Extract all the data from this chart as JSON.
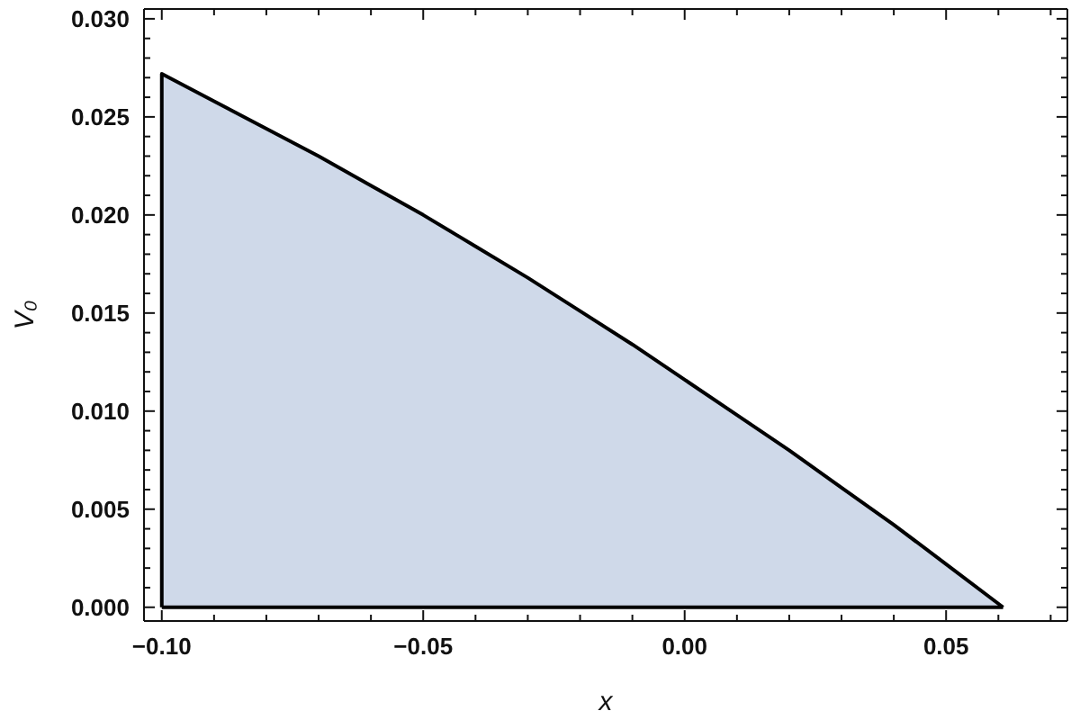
{
  "chart_data": {
    "type": "area",
    "xlabel": "x",
    "ylabel": "V₀",
    "x": [
      -0.1,
      -0.09,
      -0.08,
      -0.07,
      -0.06,
      -0.05,
      -0.04,
      -0.03,
      -0.02,
      -0.01,
      0,
      0.01,
      0.02,
      0.03,
      0.04,
      0.05,
      0.0609
    ],
    "values": [
      0.0272,
      0.0258,
      0.0244,
      0.023,
      0.0215,
      0.02,
      0.0184,
      0.0168,
      0.0151,
      0.0134,
      0.0116,
      0.0098,
      0.008,
      0.0061,
      0.0042,
      0.0022,
      0
    ],
    "color": "#cfd9e9",
    "xlim": [
      -0.1034,
      0.0732
    ],
    "ylim": [
      -0.0007,
      0.0305
    ],
    "xticks": [
      {
        "value": -0.1,
        "label": "−0.10"
      },
      {
        "value": -0.09,
        "label": null
      },
      {
        "value": -0.08,
        "label": null
      },
      {
        "value": -0.07,
        "label": null
      },
      {
        "value": -0.06,
        "label": null
      },
      {
        "value": -0.05,
        "label": "−0.05"
      },
      {
        "value": -0.04,
        "label": null
      },
      {
        "value": -0.03,
        "label": null
      },
      {
        "value": -0.02,
        "label": null
      },
      {
        "value": -0.01,
        "label": null
      },
      {
        "value": 0,
        "label": "0.00"
      },
      {
        "value": 0.01,
        "label": null
      },
      {
        "value": 0.02,
        "label": null
      },
      {
        "value": 0.03,
        "label": null
      },
      {
        "value": 0.04,
        "label": null
      },
      {
        "value": 0.05,
        "label": "0.05"
      },
      {
        "value": 0.06,
        "label": null
      },
      {
        "value": 0.07,
        "label": null
      }
    ],
    "yticks": [
      {
        "value": 0,
        "label": "0.000"
      },
      {
        "value": 0.001,
        "label": null
      },
      {
        "value": 0.002,
        "label": null
      },
      {
        "value": 0.003,
        "label": null
      },
      {
        "value": 0.004,
        "label": null
      },
      {
        "value": 0.005,
        "label": "0.005"
      },
      {
        "value": 0.006,
        "label": null
      },
      {
        "value": 0.007,
        "label": null
      },
      {
        "value": 0.008,
        "label": null
      },
      {
        "value": 0.009,
        "label": null
      },
      {
        "value": 0.01,
        "label": "0.010"
      },
      {
        "value": 0.011,
        "label": null
      },
      {
        "value": 0.012,
        "label": null
      },
      {
        "value": 0.013,
        "label": null
      },
      {
        "value": 0.014,
        "label": null
      },
      {
        "value": 0.015,
        "label": "0.015"
      },
      {
        "value": 0.016,
        "label": null
      },
      {
        "value": 0.017,
        "label": null
      },
      {
        "value": 0.018,
        "label": null
      },
      {
        "value": 0.019,
        "label": null
      },
      {
        "value": 0.02,
        "label": "0.020"
      },
      {
        "value": 0.021,
        "label": null
      },
      {
        "value": 0.022,
        "label": null
      },
      {
        "value": 0.023,
        "label": null
      },
      {
        "value": 0.024,
        "label": null
      },
      {
        "value": 0.025,
        "label": "0.025"
      },
      {
        "value": 0.026,
        "label": null
      },
      {
        "value": 0.027,
        "label": null
      },
      {
        "value": 0.028,
        "label": null
      },
      {
        "value": 0.029,
        "label": null
      },
      {
        "value": 0.03,
        "label": "0.030"
      }
    ]
  }
}
